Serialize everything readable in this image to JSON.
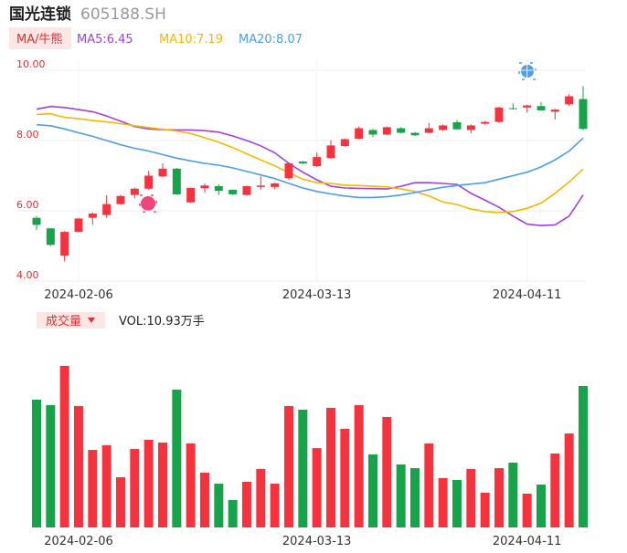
{
  "header": {
    "name": "国光连锁",
    "code": "605188.SH"
  },
  "chart_data": [
    {
      "type": "candlestick",
      "legend_title": "MA/牛熊",
      "up_color": "#f5333f",
      "down_color": "#16a34a",
      "categories": [
        null,
        null,
        null,
        "2024-02-06",
        null,
        null,
        null,
        null,
        null,
        null,
        null,
        null,
        null,
        null,
        null,
        null,
        null,
        null,
        null,
        null,
        "2024-03-13",
        null,
        null,
        null,
        null,
        null,
        null,
        null,
        null,
        null,
        null,
        null,
        null,
        null,
        null,
        "2024-04-11",
        null,
        null,
        null,
        null
      ],
      "open": [
        5.8,
        5.5,
        4.72,
        5.4,
        5.8,
        5.88,
        6.19,
        6.45,
        6.63,
        6.98,
        7.2,
        6.24,
        6.64,
        6.7,
        6.6,
        6.45,
        6.68,
        6.68,
        6.93,
        7.4,
        7.27,
        7.5,
        7.84,
        8.05,
        8.3,
        8.17,
        8.35,
        8.22,
        8.22,
        8.3,
        8.52,
        8.3,
        8.48,
        8.53,
        8.92,
        8.94,
        8.98,
        8.82,
        9.03,
        9.18
      ],
      "close": [
        5.6,
        5.03,
        5.4,
        5.78,
        5.92,
        6.19,
        6.42,
        6.63,
        7.0,
        7.2,
        6.47,
        6.65,
        6.72,
        6.57,
        6.47,
        6.7,
        6.72,
        6.78,
        7.35,
        7.35,
        7.53,
        7.86,
        8.04,
        8.35,
        8.17,
        8.38,
        8.22,
        8.15,
        8.35,
        8.43,
        8.32,
        8.43,
        8.53,
        8.94,
        8.9,
        9.0,
        8.86,
        8.88,
        9.26,
        8.33
      ],
      "high": [
        5.85,
        5.5,
        5.42,
        5.8,
        5.95,
        6.44,
        6.45,
        6.66,
        7.14,
        7.35,
        7.22,
        6.66,
        6.78,
        6.75,
        6.6,
        6.72,
        6.98,
        6.8,
        7.37,
        7.42,
        7.66,
        8.01,
        8.06,
        8.4,
        8.33,
        8.4,
        8.38,
        8.24,
        8.5,
        8.46,
        8.58,
        8.46,
        8.56,
        8.96,
        9.06,
        9.02,
        9.1,
        8.9,
        9.32,
        9.55
      ],
      "low": [
        5.45,
        5.0,
        4.56,
        5.38,
        5.6,
        5.8,
        6.17,
        6.35,
        6.6,
        6.95,
        6.45,
        6.22,
        6.52,
        6.45,
        6.45,
        6.43,
        6.6,
        6.62,
        6.88,
        7.33,
        7.25,
        7.48,
        7.82,
        8.03,
        8.1,
        8.15,
        8.2,
        8.13,
        8.2,
        8.28,
        8.3,
        8.2,
        8.45,
        8.5,
        8.88,
        8.8,
        8.84,
        8.6,
        8.98,
        8.3
      ],
      "series": [
        {
          "name": "MA5:6.45",
          "color": "#a040e0",
          "values": [
            8.89,
            8.97,
            8.94,
            8.88,
            8.82,
            8.7,
            8.55,
            8.4,
            8.33,
            8.31,
            8.3,
            8.3,
            8.28,
            8.24,
            8.13,
            8.0,
            7.85,
            7.65,
            7.35,
            7.1,
            6.88,
            6.7,
            6.65,
            6.64,
            6.63,
            6.62,
            6.7,
            6.8,
            6.8,
            6.78,
            6.75,
            6.5,
            6.3,
            6.1,
            5.85,
            5.62,
            5.58,
            5.6,
            5.85,
            6.45
          ]
        },
        {
          "name": "MA10:7.19",
          "color": "#f5b800",
          "values": [
            8.74,
            8.76,
            8.66,
            8.62,
            8.57,
            8.53,
            8.48,
            8.42,
            8.37,
            8.32,
            8.27,
            8.2,
            8.08,
            7.95,
            7.8,
            7.62,
            7.45,
            7.28,
            7.08,
            6.9,
            6.8,
            6.78,
            6.73,
            6.72,
            6.7,
            6.68,
            6.62,
            6.55,
            6.42,
            6.25,
            6.18,
            6.05,
            5.98,
            5.95,
            5.98,
            6.07,
            6.22,
            6.5,
            6.82,
            7.19
          ]
        },
        {
          "name": "MA20:8.07",
          "color": "#4a9de8",
          "values": [
            8.45,
            8.42,
            8.33,
            8.22,
            8.12,
            8.0,
            7.88,
            7.78,
            7.7,
            7.6,
            7.5,
            7.42,
            7.35,
            7.3,
            7.22,
            7.12,
            7.02,
            6.92,
            6.78,
            6.65,
            6.55,
            6.48,
            6.42,
            6.38,
            6.38,
            6.4,
            6.45,
            6.52,
            6.6,
            6.67,
            6.72,
            6.76,
            6.8,
            6.9,
            7.0,
            7.1,
            7.25,
            7.45,
            7.7,
            8.07
          ]
        }
      ],
      "ylim": [
        4,
        10
      ],
      "yticks": [
        {
          "value": 4,
          "label": "4.00"
        },
        {
          "value": 6,
          "label": "6.00"
        },
        {
          "value": 8,
          "label": "8.00"
        },
        {
          "value": 10,
          "label": "10.00"
        }
      ],
      "grid": true
    },
    {
      "type": "bar",
      "label": "成交量",
      "vol_label": "VOL:10.93万手",
      "values": [
        9.87,
        9.45,
        12.48,
        9.38,
        5.99,
        6.35,
        3.88,
        6.06,
        6.77,
        6.56,
        10.65,
        6.49,
        4.23,
        3.38,
        2.12,
        3.53,
        4.51,
        3.38,
        9.38,
        9.1,
        6.13,
        9.24,
        7.62,
        9.45,
        5.64,
        8.53,
        4.87,
        4.58,
        6.49,
        3.81,
        3.67,
        4.51,
        2.68,
        4.58,
        5.01,
        2.61,
        3.31,
        5.71,
        7.26,
        10.93
      ]
    }
  ]
}
